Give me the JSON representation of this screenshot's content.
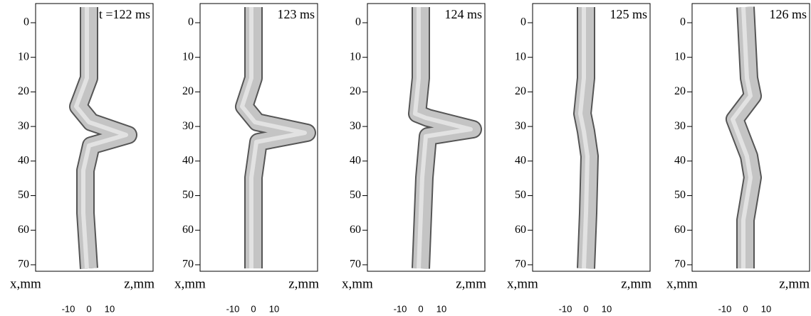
{
  "panels": [
    {
      "label": "t =122 ms"
    },
    {
      "label": "123 ms"
    },
    {
      "label": "124 ms"
    },
    {
      "label": "125 ms"
    },
    {
      "label": "126 ms"
    }
  ],
  "y_ticks": [
    0,
    10,
    20,
    30,
    40,
    50,
    60,
    70
  ],
  "x_ticks": [
    -10,
    0,
    10
  ],
  "x_label": "x,mm",
  "z_label": "z,mm"
}
